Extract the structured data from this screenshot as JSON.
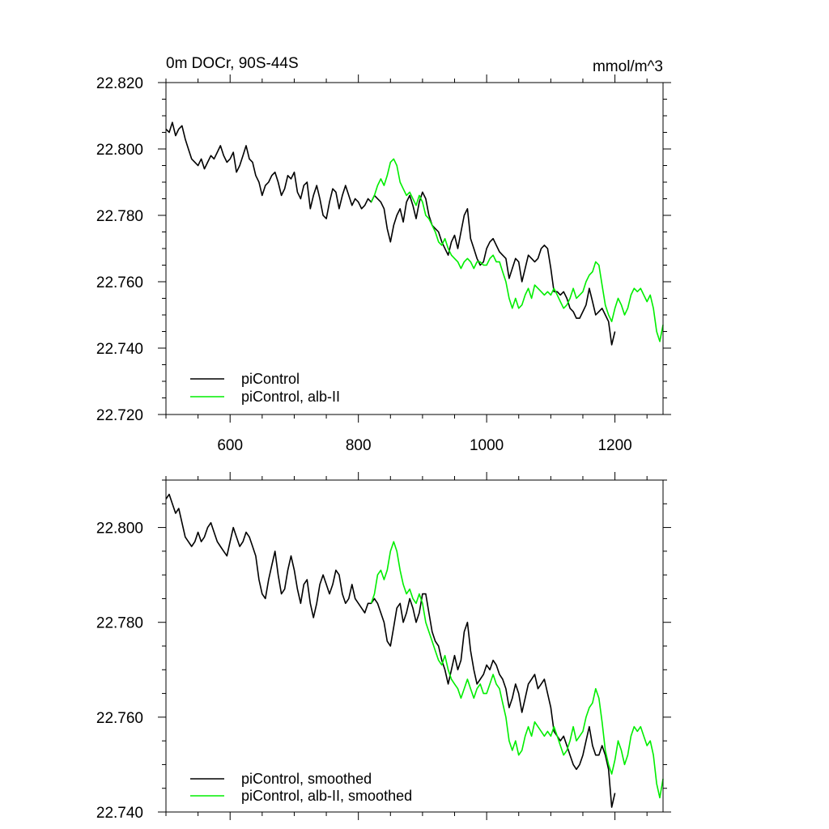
{
  "chart_data": [
    {
      "type": "line",
      "title": "0m DOCr, 90S-44S",
      "units": "mmol/m^3",
      "xlim": [
        500,
        1275
      ],
      "ylim": [
        22.72,
        22.82
      ],
      "x_ticks": [
        600,
        800,
        1000,
        1200
      ],
      "x_tick_labels": [
        "600",
        "800",
        "1000",
        "1200"
      ],
      "y_ticks": [
        22.72,
        22.74,
        22.76,
        22.78,
        22.8,
        22.82
      ],
      "y_tick_labels": [
        "22.720",
        "22.740",
        "22.760",
        "22.780",
        "22.800",
        "22.820"
      ],
      "legend_placement": "bottom-left",
      "series": [
        {
          "name": "piControl",
          "color": "#000000",
          "x": [
            500,
            505,
            510,
            515,
            520,
            525,
            530,
            535,
            540,
            545,
            550,
            555,
            560,
            565,
            570,
            575,
            580,
            585,
            590,
            595,
            600,
            605,
            610,
            615,
            620,
            625,
            630,
            635,
            640,
            645,
            650,
            655,
            660,
            665,
            670,
            675,
            680,
            685,
            690,
            695,
            700,
            705,
            710,
            715,
            720,
            725,
            730,
            735,
            740,
            745,
            750,
            755,
            760,
            765,
            770,
            775,
            780,
            785,
            790,
            795,
            800,
            805,
            810,
            815,
            820,
            825,
            830,
            835,
            840,
            845,
            850,
            855,
            860,
            865,
            870,
            875,
            880,
            885,
            890,
            895,
            900,
            905,
            910,
            915,
            920,
            925,
            930,
            935,
            940,
            945,
            950,
            955,
            960,
            965,
            970,
            975,
            980,
            985,
            990,
            995,
            1000,
            1005,
            1010,
            1015,
            1020,
            1025,
            1030,
            1035,
            1040,
            1045,
            1050,
            1055,
            1060,
            1065,
            1070,
            1075,
            1080,
            1085,
            1090,
            1095,
            1100,
            1105,
            1110,
            1115,
            1120,
            1125,
            1130,
            1135,
            1140,
            1145,
            1150,
            1155,
            1160,
            1165,
            1170,
            1175,
            1180,
            1185,
            1190,
            1195,
            1200
          ],
          "values": [
            22.806,
            22.805,
            22.808,
            22.804,
            22.806,
            22.807,
            22.803,
            22.8,
            22.797,
            22.796,
            22.795,
            22.797,
            22.794,
            22.796,
            22.798,
            22.797,
            22.799,
            22.801,
            22.798,
            22.796,
            22.797,
            22.799,
            22.793,
            22.795,
            22.798,
            22.801,
            22.797,
            22.796,
            22.792,
            22.79,
            22.786,
            22.789,
            22.79,
            22.792,
            22.793,
            22.79,
            22.786,
            22.788,
            22.792,
            22.791,
            22.793,
            22.787,
            22.785,
            22.789,
            22.79,
            22.782,
            22.786,
            22.789,
            22.785,
            22.78,
            22.779,
            22.784,
            22.788,
            22.787,
            22.782,
            22.786,
            22.789,
            22.786,
            22.783,
            22.785,
            22.784,
            22.782,
            22.783,
            22.785,
            22.784,
            22.786,
            22.785,
            22.784,
            22.782,
            22.776,
            22.772,
            22.777,
            22.78,
            22.782,
            22.778,
            22.784,
            22.786,
            22.783,
            22.779,
            22.784,
            22.787,
            22.785,
            22.78,
            22.777,
            22.776,
            22.775,
            22.772,
            22.77,
            22.768,
            22.772,
            22.774,
            22.77,
            22.775,
            22.78,
            22.782,
            22.773,
            22.77,
            22.767,
            22.765,
            22.766,
            22.77,
            22.772,
            22.773,
            22.771,
            22.769,
            22.768,
            22.767,
            22.761,
            22.764,
            22.767,
            22.766,
            22.76,
            22.764,
            22.768,
            22.767,
            22.766,
            22.767,
            22.77,
            22.771,
            22.77,
            22.764,
            22.757,
            22.757,
            22.756,
            22.757,
            22.755,
            22.752,
            22.751,
            22.749,
            22.749,
            22.751,
            22.753,
            22.758,
            22.754,
            22.75,
            22.751,
            22.752,
            22.75,
            22.748,
            22.741,
            22.745
          ]
        },
        {
          "name": "piControl, alb-II",
          "color": "#00ee00",
          "x": [
            820,
            825,
            830,
            835,
            840,
            845,
            850,
            855,
            860,
            865,
            870,
            875,
            880,
            885,
            890,
            895,
            900,
            905,
            910,
            915,
            920,
            925,
            930,
            935,
            940,
            945,
            950,
            955,
            960,
            965,
            970,
            975,
            980,
            985,
            990,
            995,
            1000,
            1005,
            1010,
            1015,
            1020,
            1025,
            1030,
            1035,
            1040,
            1045,
            1050,
            1055,
            1060,
            1065,
            1070,
            1075,
            1080,
            1085,
            1090,
            1095,
            1100,
            1105,
            1110,
            1115,
            1120,
            1125,
            1130,
            1135,
            1140,
            1145,
            1150,
            1155,
            1160,
            1165,
            1170,
            1175,
            1180,
            1185,
            1190,
            1195,
            1200,
            1205,
            1210,
            1215,
            1220,
            1225,
            1230,
            1235,
            1240,
            1245,
            1250,
            1255,
            1260,
            1265,
            1270,
            1275
          ],
          "values": [
            22.784,
            22.786,
            22.789,
            22.791,
            22.789,
            22.792,
            22.796,
            22.797,
            22.795,
            22.79,
            22.788,
            22.786,
            22.787,
            22.785,
            22.783,
            22.786,
            22.784,
            22.78,
            22.779,
            22.777,
            22.775,
            22.772,
            22.771,
            22.773,
            22.77,
            22.768,
            22.767,
            22.766,
            22.764,
            22.766,
            22.767,
            22.766,
            22.764,
            22.766,
            22.766,
            22.765,
            22.765,
            22.767,
            22.768,
            22.766,
            22.766,
            22.763,
            22.76,
            22.755,
            22.752,
            22.755,
            22.752,
            22.753,
            22.756,
            22.758,
            22.755,
            22.759,
            22.758,
            22.757,
            22.756,
            22.757,
            22.756,
            22.758,
            22.756,
            22.754,
            22.752,
            22.753,
            22.755,
            22.758,
            22.755,
            22.756,
            22.757,
            22.76,
            22.762,
            22.763,
            22.766,
            22.765,
            22.759,
            22.753,
            22.75,
            22.748,
            22.752,
            22.755,
            22.753,
            22.75,
            22.752,
            22.756,
            22.758,
            22.757,
            22.758,
            22.756,
            22.754,
            22.756,
            22.752,
            22.745,
            22.742,
            22.747
          ]
        }
      ]
    },
    {
      "type": "line",
      "xlim": [
        500,
        1275
      ],
      "ylim": [
        22.74,
        22.81
      ],
      "x_ticks": [
        600,
        800,
        1000,
        1200
      ],
      "y_ticks": [
        22.74,
        22.76,
        22.78,
        22.8
      ],
      "y_tick_labels": [
        "22.740",
        "22.760",
        "22.780",
        "22.800"
      ],
      "legend_placement": "bottom-left",
      "series": [
        {
          "name": "piControl, smoothed",
          "color": "#000000",
          "x": [
            500,
            505,
            510,
            515,
            520,
            525,
            530,
            535,
            540,
            545,
            550,
            555,
            560,
            565,
            570,
            575,
            580,
            585,
            590,
            595,
            600,
            605,
            610,
            615,
            620,
            625,
            630,
            635,
            640,
            645,
            650,
            655,
            660,
            665,
            670,
            675,
            680,
            685,
            690,
            695,
            700,
            705,
            710,
            715,
            720,
            725,
            730,
            735,
            740,
            745,
            750,
            755,
            760,
            765,
            770,
            775,
            780,
            785,
            790,
            795,
            800,
            805,
            810,
            815,
            820,
            825,
            830,
            835,
            840,
            845,
            850,
            855,
            860,
            865,
            870,
            875,
            880,
            885,
            890,
            895,
            900,
            905,
            910,
            915,
            920,
            925,
            930,
            935,
            940,
            945,
            950,
            955,
            960,
            965,
            970,
            975,
            980,
            985,
            990,
            995,
            1000,
            1005,
            1010,
            1015,
            1020,
            1025,
            1030,
            1035,
            1040,
            1045,
            1050,
            1055,
            1060,
            1065,
            1070,
            1075,
            1080,
            1085,
            1090,
            1095,
            1100,
            1105,
            1110,
            1115,
            1120,
            1125,
            1130,
            1135,
            1140,
            1145,
            1150,
            1155,
            1160,
            1165,
            1170,
            1175,
            1180,
            1185,
            1190,
            1195,
            1200
          ],
          "values": [
            22.806,
            22.807,
            22.805,
            22.803,
            22.804,
            22.801,
            22.798,
            22.797,
            22.796,
            22.797,
            22.799,
            22.797,
            22.798,
            22.8,
            22.801,
            22.799,
            22.797,
            22.796,
            22.795,
            22.794,
            22.797,
            22.8,
            22.798,
            22.796,
            22.797,
            22.799,
            22.798,
            22.796,
            22.794,
            22.789,
            22.786,
            22.785,
            22.789,
            22.792,
            22.795,
            22.79,
            22.786,
            22.787,
            22.791,
            22.794,
            22.791,
            22.787,
            22.784,
            22.788,
            22.789,
            22.784,
            22.781,
            22.784,
            22.788,
            22.79,
            22.788,
            22.786,
            22.788,
            22.791,
            22.79,
            22.786,
            22.784,
            22.785,
            22.788,
            22.785,
            22.784,
            22.783,
            22.782,
            22.784,
            22.784,
            22.785,
            22.784,
            22.782,
            22.78,
            22.776,
            22.775,
            22.779,
            22.783,
            22.784,
            22.78,
            22.782,
            22.785,
            22.783,
            22.78,
            22.782,
            22.786,
            22.786,
            22.782,
            22.778,
            22.776,
            22.775,
            22.772,
            22.77,
            22.767,
            22.77,
            22.773,
            22.77,
            22.772,
            22.778,
            22.78,
            22.774,
            22.77,
            22.767,
            22.768,
            22.769,
            22.771,
            22.77,
            22.772,
            22.771,
            22.769,
            22.768,
            22.766,
            22.762,
            22.764,
            22.767,
            22.765,
            22.761,
            22.764,
            22.767,
            22.768,
            22.769,
            22.766,
            22.767,
            22.768,
            22.765,
            22.762,
            22.757,
            22.756,
            22.755,
            22.756,
            22.754,
            22.752,
            22.75,
            22.749,
            22.75,
            22.752,
            22.755,
            22.758,
            22.754,
            22.752,
            22.752,
            22.754,
            22.752,
            22.749,
            22.741,
            22.744
          ]
        },
        {
          "name": "piControl, alb-II, smoothed",
          "color": "#00ee00",
          "x": [
            820,
            825,
            830,
            835,
            840,
            845,
            850,
            855,
            860,
            865,
            870,
            875,
            880,
            885,
            890,
            895,
            900,
            905,
            910,
            915,
            920,
            925,
            930,
            935,
            940,
            945,
            950,
            955,
            960,
            965,
            970,
            975,
            980,
            985,
            990,
            995,
            1000,
            1005,
            1010,
            1015,
            1020,
            1025,
            1030,
            1035,
            1040,
            1045,
            1050,
            1055,
            1060,
            1065,
            1070,
            1075,
            1080,
            1085,
            1090,
            1095,
            1100,
            1105,
            1110,
            1115,
            1120,
            1125,
            1130,
            1135,
            1140,
            1145,
            1150,
            1155,
            1160,
            1165,
            1170,
            1175,
            1180,
            1185,
            1190,
            1195,
            1200,
            1205,
            1210,
            1215,
            1220,
            1225,
            1230,
            1235,
            1240,
            1245,
            1250,
            1255,
            1260,
            1265,
            1270,
            1275
          ],
          "values": [
            22.784,
            22.786,
            22.79,
            22.791,
            22.789,
            22.791,
            22.795,
            22.797,
            22.795,
            22.791,
            22.788,
            22.786,
            22.787,
            22.785,
            22.784,
            22.786,
            22.784,
            22.78,
            22.778,
            22.776,
            22.774,
            22.772,
            22.771,
            22.773,
            22.77,
            22.768,
            22.767,
            22.766,
            22.764,
            22.766,
            22.768,
            22.766,
            22.764,
            22.766,
            22.767,
            22.765,
            22.765,
            22.767,
            22.769,
            22.767,
            22.766,
            22.763,
            22.76,
            22.755,
            22.753,
            22.755,
            22.752,
            22.753,
            22.756,
            22.758,
            22.756,
            22.759,
            22.758,
            22.757,
            22.756,
            22.757,
            22.756,
            22.758,
            22.756,
            22.754,
            22.752,
            22.753,
            22.755,
            22.758,
            22.755,
            22.756,
            22.757,
            22.76,
            22.762,
            22.763,
            22.766,
            22.764,
            22.759,
            22.753,
            22.75,
            22.748,
            22.751,
            22.755,
            22.753,
            22.75,
            22.752,
            22.756,
            22.758,
            22.757,
            22.758,
            22.756,
            22.754,
            22.755,
            22.752,
            22.746,
            22.743,
            22.747
          ]
        }
      ]
    }
  ]
}
